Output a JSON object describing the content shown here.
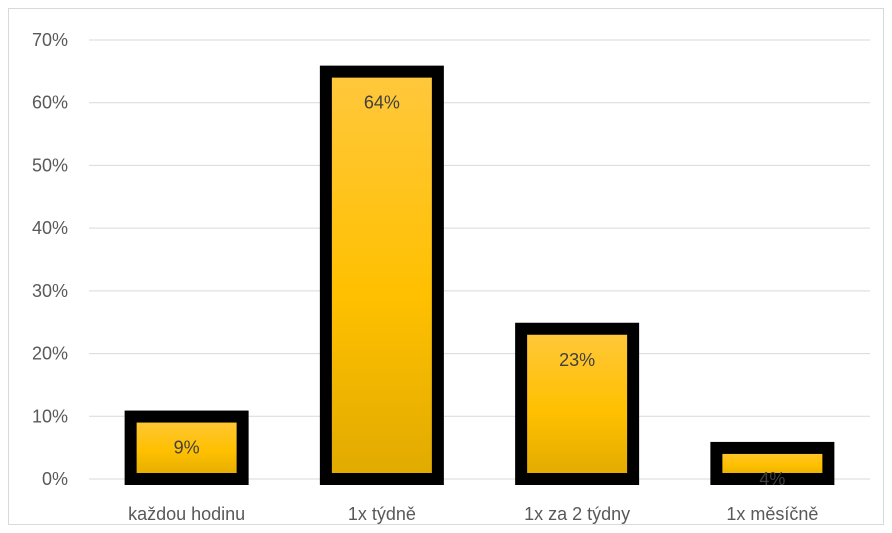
{
  "chart_data": {
    "type": "bar",
    "categories": [
      "každou hodinu",
      "1x týdně",
      "1x za 2 týdny",
      "1x měsíčně"
    ],
    "values": [
      9,
      64,
      23,
      4
    ],
    "data_labels": [
      "9%",
      "64%",
      "23%",
      "4%"
    ],
    "ylim": [
      0,
      70
    ],
    "yticks": [
      0,
      10,
      20,
      30,
      40,
      50,
      60,
      70
    ],
    "ytick_labels": [
      "0%",
      "10%",
      "20%",
      "30%",
      "40%",
      "50%",
      "60%",
      "70%"
    ],
    "grid": true,
    "legend": "none",
    "title": "",
    "xlabel": "",
    "ylabel": "",
    "colors": {
      "bar_fill_top": "#FFC83D",
      "bar_fill_mid": "#FFC000",
      "bar_fill_bottom": "#E0AA00",
      "bar_border": "#000000",
      "grid": "#D9D9D9",
      "axis_text": "#595959"
    }
  }
}
